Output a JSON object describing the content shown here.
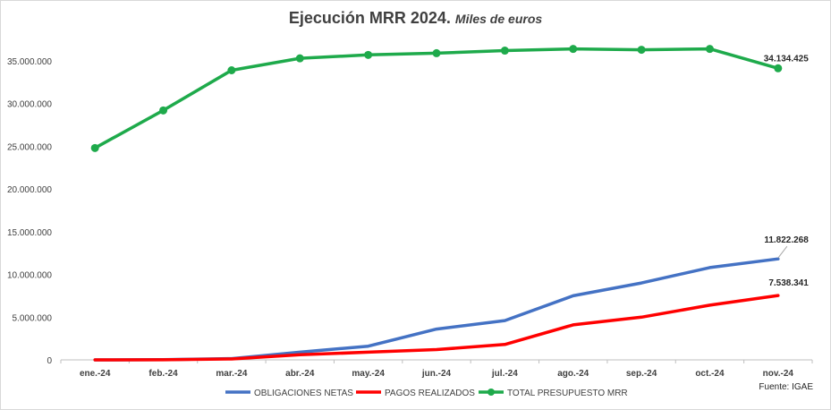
{
  "chart_data": {
    "type": "line",
    "title": "Ejecución MRR 2024.",
    "subtitle": "Miles de euros",
    "categories": [
      "ene.-24",
      "feb.-24",
      "mar.-24",
      "abr.-24",
      "may.-24",
      "jun.-24",
      "jul.-24",
      "ago.-24",
      "sep.-24",
      "oct.-24",
      "nov.-24"
    ],
    "y_ticks": [
      "0",
      "5.000.000",
      "10.000.000",
      "15.000.000",
      "20.000.000",
      "25.000.000",
      "30.000.000",
      "35.000.000"
    ],
    "ylim": [
      0,
      35000000
    ],
    "ytick_step": 5000000,
    "grid": false,
    "legend_position": "bottom",
    "series": [
      {
        "name": "OBLIGACIONES NETAS",
        "color": "#4472c4",
        "markers": false,
        "values": [
          0,
          20000,
          150000,
          900000,
          1600000,
          3600000,
          4600000,
          7500000,
          9000000,
          10800000,
          11822268
        ],
        "last_label": "11.822.268"
      },
      {
        "name": "PAGOS REALIZADOS",
        "color": "#ff0000",
        "markers": false,
        "values": [
          0,
          10000,
          100000,
          600000,
          900000,
          1200000,
          1800000,
          4100000,
          5000000,
          6400000,
          7538341
        ],
        "last_label": "7.538.341"
      },
      {
        "name": "TOTAL PRESUPUESTO MRR",
        "color": "#1eaa4b",
        "markers": true,
        "values": [
          24800000,
          29200000,
          33900000,
          35300000,
          35700000,
          35900000,
          36200000,
          36400000,
          36300000,
          36400000,
          34134425
        ],
        "last_label": "34.134.425"
      }
    ],
    "source": "Fuente: IGAE"
  }
}
